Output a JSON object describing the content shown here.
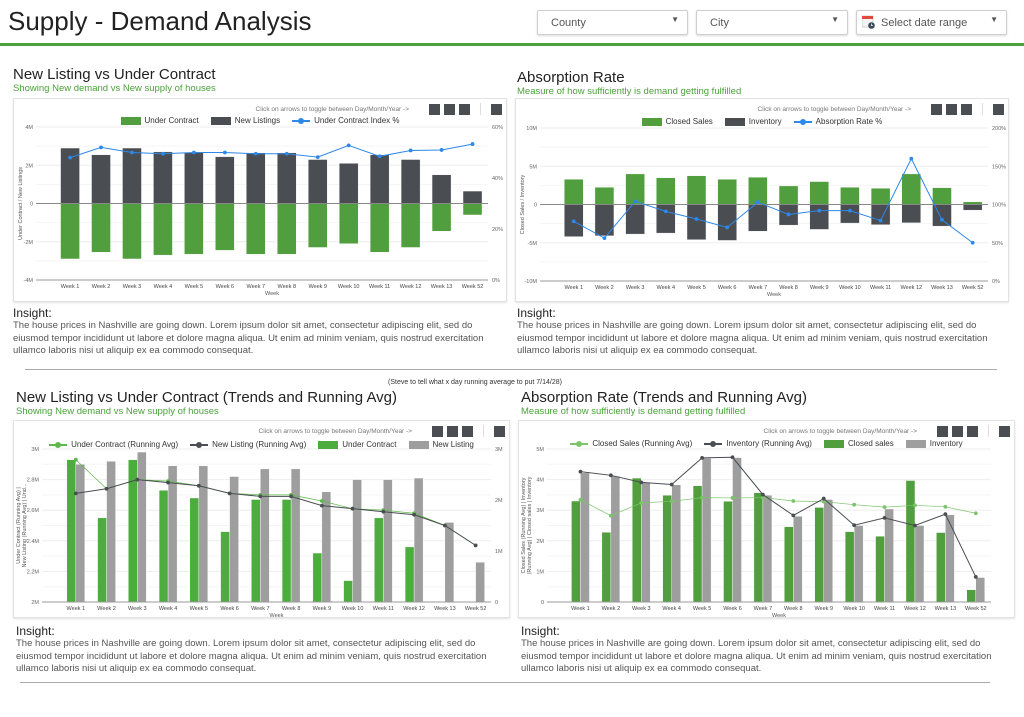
{
  "header": {
    "title": "Supply - Demand Analysis",
    "filters": [
      {
        "label": "County",
        "icon": "caret-down-icon"
      },
      {
        "label": "City",
        "icon": "caret-down-icon"
      },
      {
        "label": "Select date range",
        "icon": "calendar-icon"
      }
    ],
    "accent": "#4aa23a"
  },
  "toggle_hint": "Click on arrows to toggle between Day/Month/Year ->",
  "note": "(Steve to tell what x day running average to put 7/14/28)",
  "panels": [
    {
      "title": "New Listing vs Under Contract",
      "subtitle": "Showing New demand vs New supply of houses",
      "insight_label": "Insight:",
      "insight": "The house prices in Nashville are going down. Lorem ipsum dolor sit amet, consectetur adipiscing elit, sed do eiusmod tempor incididunt ut labore et dolore magna aliqua. Ut enim ad minim veniam, quis nostrud exercitation ullamco laboris nisi ut aliquip ex ea commodo consequat."
    },
    {
      "title": "Absorption Rate",
      "subtitle": "Measure of how sufficiently is demand getting fulfilled",
      "insight_label": "Insight:",
      "insight": "The house prices in Nashville are going down. Lorem ipsum dolor sit amet, consectetur adipiscing elit, sed do eiusmod tempor incididunt ut labore et dolore magna aliqua. Ut enim ad minim veniam, quis nostrud exercitation ullamco laboris nisi ut aliquip ex ea commodo consequat."
    },
    {
      "title": "New Listing vs Under Contract (Trends and Running Avg)",
      "subtitle": "Showing New demand vs New supply of houses",
      "insight_label": "Insight:",
      "insight": "The house prices in Nashville are going down. Lorem ipsum dolor sit amet, consectetur adipiscing elit, sed do eiusmod tempor incididunt ut labore et dolore magna aliqua. Ut enim ad minim veniam, quis nostrud exercitation ullamco laboris nisi ut aliquip ex ea commodo consequat."
    },
    {
      "title": "Absorption Rate (Trends and Running Avg)",
      "subtitle": "Measure of how sufficiently is demand getting fulfilled",
      "insight_label": "Insight:",
      "insight": "The house prices in Nashville are going down. Lorem ipsum dolor sit amet, consectetur adipiscing elit, sed do eiusmod tempor incididunt ut labore et dolore magna aliqua. Ut enim ad minim veniam, quis nostrud exercitation ullamco laboris nisi ut aliquip ex ea commodo consequat."
    }
  ],
  "chart_data": [
    {
      "type": "bar",
      "categories": [
        "Week 1",
        "Week 2",
        "Week 3",
        "Week 4",
        "Week 5",
        "Week 6",
        "Week 7",
        "Week 8",
        "Week 9",
        "Week 10",
        "Week 11",
        "Week 12",
        "Week 13",
        "Week 52"
      ],
      "xlabel": "Week",
      "ylabel": "Under Contract / New Listings",
      "ylim": [
        -4000000,
        4000000
      ],
      "yticks": [
        {
          "v": 4000000,
          "t": "4M"
        },
        {
          "v": 2000000,
          "t": "2M"
        },
        {
          "v": 0,
          "t": "0"
        },
        {
          "v": -2000000,
          "t": "-2M"
        },
        {
          "v": -4000000,
          "t": "-4M"
        }
      ],
      "y2lim": [
        0,
        60
      ],
      "y2ticks": [
        {
          "v": 60,
          "t": "60%"
        },
        {
          "v": 40,
          "t": "40%"
        },
        {
          "v": 20,
          "t": "20%"
        },
        {
          "v": 0,
          "t": "0%"
        }
      ],
      "stacked": true,
      "grid": true,
      "legend": "top",
      "series": [
        {
          "name": "Under Contract",
          "kind": "bar",
          "color": "#519e3e",
          "values": [
            -2900000,
            -2550000,
            -2900000,
            -2700000,
            -2650000,
            -2450000,
            -2650000,
            -2650000,
            -2300000,
            -2100000,
            -2550000,
            -2300000,
            -1450000,
            -600000
          ]
        },
        {
          "name": "New Listings",
          "kind": "bar",
          "color": "#4a4d52",
          "values": [
            2900000,
            2550000,
            2900000,
            2700000,
            2650000,
            2450000,
            2650000,
            2650000,
            2300000,
            2100000,
            2550000,
            2300000,
            1500000,
            650000
          ]
        },
        {
          "name": "Under Contract Index %",
          "kind": "line",
          "axis": "right",
          "color": "#2e88e8",
          "values": [
            48,
            52,
            50,
            49.5,
            50,
            50,
            49.5,
            49.5,
            48.2,
            52.8,
            48.5,
            50.8,
            51,
            53.3
          ]
        }
      ]
    },
    {
      "type": "bar",
      "categories": [
        "Week 1",
        "Week 2",
        "Week 3",
        "Week 4",
        "Week 5",
        "Week 6",
        "Week 7",
        "Week 8",
        "Week 9",
        "Week 10",
        "Week 11",
        "Week 12",
        "Week 13",
        "Week 52"
      ],
      "xlabel": "Week",
      "ylabel": "Closed Sales / Inventory",
      "ylim": [
        -10000000,
        10000000
      ],
      "yticks": [
        {
          "v": 10000000,
          "t": "10M"
        },
        {
          "v": 5000000,
          "t": "5M"
        },
        {
          "v": 0,
          "t": "0"
        },
        {
          "v": -5000000,
          "t": "-5M"
        },
        {
          "v": -10000000,
          "t": "-10M"
        }
      ],
      "y2lim": [
        0,
        200
      ],
      "y2ticks": [
        {
          "v": 200,
          "t": "200%"
        },
        {
          "v": 150,
          "t": "150%"
        },
        {
          "v": 100,
          "t": "100%"
        },
        {
          "v": 50,
          "t": "50%"
        },
        {
          "v": 0,
          "t": "0%"
        }
      ],
      "stacked": true,
      "grid": true,
      "legend": "top",
      "series": [
        {
          "name": "Closed Sales",
          "kind": "bar",
          "color": "#519e3e",
          "values": [
            3300000,
            2260000,
            4000000,
            3500000,
            3750000,
            3300000,
            3570000,
            2430000,
            3000000,
            2260000,
            2130000,
            4000000,
            2200000,
            350000
          ]
        },
        {
          "name": "Inventory",
          "kind": "bar",
          "color": "#4a4d52",
          "values": [
            -4200000,
            -4100000,
            -3870000,
            -3740000,
            -4600000,
            -4700000,
            -3500000,
            -2700000,
            -3260000,
            -2430000,
            -2650000,
            -2400000,
            -2830000,
            -740000
          ]
        },
        {
          "name": "Absorption Rate %",
          "kind": "line",
          "axis": "right",
          "color": "#2e88e8",
          "values": [
            78,
            56,
            104,
            91,
            81,
            70,
            103,
            87,
            92,
            92,
            79,
            160,
            80,
            50
          ]
        }
      ]
    },
    {
      "type": "bar",
      "categories": [
        "Week 1",
        "Week 2",
        "Week 3",
        "Week 4",
        "Week 5",
        "Week 6",
        "Week 7",
        "Week 8",
        "Week 9",
        "Week 10",
        "Week 11",
        "Week 12",
        "Week 13",
        "Week 52"
      ],
      "xlabel": "Week",
      "ylabel": "Under Contract (Running Avg) | New Listing (Running Avg) | Und...",
      "ylim": [
        2000000,
        3000000
      ],
      "yticks": [
        {
          "v": 3000000,
          "t": "3M"
        },
        {
          "v": 2800000,
          "t": "2.8M"
        },
        {
          "v": 2600000,
          "t": "2.6M"
        },
        {
          "v": 2400000,
          "t": "2.4M"
        },
        {
          "v": 2200000,
          "t": "2.2M"
        },
        {
          "v": 2000000,
          "t": "2M"
        }
      ],
      "y2lim": [
        0,
        3000000
      ],
      "y2ticks": [
        {
          "v": 3000000,
          "t": "3M"
        },
        {
          "v": 2000000,
          "t": "2M"
        },
        {
          "v": 1000000,
          "t": "1M"
        },
        {
          "v": 0,
          "t": "0"
        }
      ],
      "stacked": false,
      "grid": true,
      "legend": "top",
      "series": [
        {
          "name": "Under Contract (Running Avg)",
          "kind": "line",
          "color": "#5cb84a",
          "values": [
            2930000,
            2740000,
            2800000,
            2790000,
            2760000,
            2710000,
            2700000,
            2700000,
            2660000,
            2610000,
            2600000,
            2580000,
            2500000,
            2370000
          ]
        },
        {
          "name": "New Listing (Running Avg)",
          "kind": "line",
          "color": "#4a4d52",
          "values": [
            2710000,
            2740000,
            2800000,
            2780000,
            2760000,
            2710000,
            2690000,
            2690000,
            2630000,
            2610000,
            2590000,
            2570000,
            2500000,
            2370000
          ]
        },
        {
          "name": "Under Contract",
          "kind": "bar",
          "color": "#4cad3e",
          "values": [
            2930000,
            2550000,
            2930000,
            2730000,
            2680000,
            2460000,
            2670000,
            2670000,
            2320000,
            2140000,
            2550000,
            2360000,
            1450000,
            600000
          ]
        },
        {
          "name": "New Listing",
          "kind": "bar",
          "color": "#9e9e9e",
          "values": [
            2900000,
            2920000,
            2980000,
            2890000,
            2890000,
            2820000,
            2870000,
            2870000,
            2720000,
            2800000,
            2800000,
            2810000,
            2520000,
            2260000
          ]
        }
      ]
    },
    {
      "type": "bar",
      "categories": [
        "Week 1",
        "Week 2",
        "Week 3",
        "Week 4",
        "Week 5",
        "Week 6",
        "Week 7",
        "Week 8",
        "Week 9",
        "Week 10",
        "Week 11",
        "Week 12",
        "Week 13",
        "Week 52"
      ],
      "xlabel": "Week",
      "ylabel": "Closed Sales (Running Avg) | Inventory (Running Avg) | Closed sales | Inventory",
      "ylim": [
        0,
        5000000
      ],
      "yticks": [
        {
          "v": 5000000,
          "t": "5M"
        },
        {
          "v": 4000000,
          "t": "4M"
        },
        {
          "v": 3000000,
          "t": "3M"
        },
        {
          "v": 2000000,
          "t": "2M"
        },
        {
          "v": 1000000,
          "t": "1M"
        },
        {
          "v": 0,
          "t": "0"
        }
      ],
      "stacked": false,
      "grid": true,
      "legend": "top",
      "series": [
        {
          "name": "Closed Sales (Running Avg)",
          "kind": "line",
          "color": "#7cc46b",
          "values": [
            3340000,
            2820000,
            3240000,
            3290000,
            3410000,
            3400000,
            3410000,
            3300000,
            3280000,
            3180000,
            3100000,
            3160000,
            3110000,
            2900000
          ]
        },
        {
          "name": "Inventory (Running Avg)",
          "kind": "line",
          "color": "#4a4d52",
          "values": [
            4260000,
            4140000,
            3910000,
            3840000,
            4710000,
            4730000,
            3510000,
            2830000,
            3380000,
            2510000,
            2750000,
            2500000,
            2870000,
            820000
          ]
        },
        {
          "name": "Closed sales",
          "kind": "bar",
          "color": "#519e3e",
          "values": [
            3300000,
            2280000,
            4050000,
            3490000,
            3800000,
            3290000,
            3570000,
            2460000,
            3090000,
            2300000,
            2150000,
            3970000,
            2270000,
            400000
          ]
        },
        {
          "name": "Inventory",
          "kind": "bar",
          "color": "#9e9e9e",
          "values": [
            4220000,
            4110000,
            3910000,
            3830000,
            4700000,
            4720000,
            3490000,
            2800000,
            3350000,
            2500000,
            3040000,
            2500000,
            2850000,
            800000
          ]
        }
      ]
    }
  ]
}
